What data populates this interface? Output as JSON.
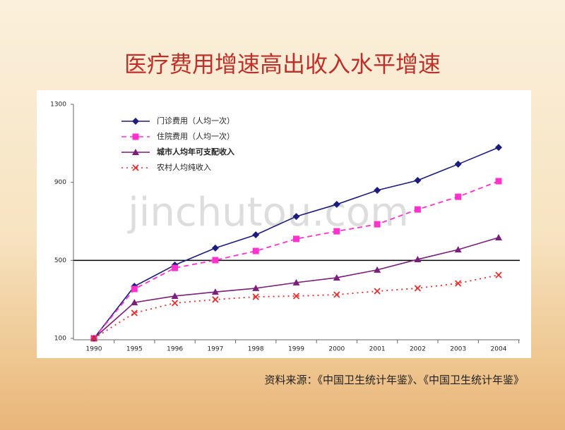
{
  "title": "医疗费用增速高出收入水平增速",
  "source": "资料来源：《中国卫生统计年鉴》、《中国卫生统计年鉴》",
  "watermark": "jinchutou.com",
  "chart_data": {
    "type": "line",
    "categories": [
      "1990",
      "1995",
      "1996",
      "1997",
      "1998",
      "1999",
      "2000",
      "2001",
      "2002",
      "2003",
      "2004"
    ],
    "ylim": [
      100,
      1300
    ],
    "yticks": [
      100,
      500,
      900,
      1300
    ],
    "reference_line": 500,
    "series": [
      {
        "name": "门诊费用（人均一次）",
        "color": "#1c1c7c",
        "line": "solid",
        "marker": "diamond",
        "values": [
          100,
          367,
          476,
          563,
          631,
          725,
          787,
          859,
          910,
          993,
          1079
        ]
      },
      {
        "name": "住院费用（人均一次）",
        "color": "#ff33cc",
        "line": "dashed",
        "marker": "square",
        "values": [
          100,
          353,
          461,
          501,
          548,
          610,
          649,
          685,
          761,
          826,
          906
        ]
      },
      {
        "name": "城市人均年可支配收入",
        "color": "#7a1f7a",
        "line": "solid",
        "marker": "triangle",
        "values": [
          100,
          284,
          317,
          338,
          357,
          386,
          411,
          451,
          505,
          555,
          617
        ]
      },
      {
        "name": "农村人均纯收入",
        "color": "#e03030",
        "line": "dotted",
        "marker": "x",
        "values": [
          100,
          230,
          281,
          299,
          313,
          317,
          324,
          342,
          357,
          382,
          425
        ]
      }
    ]
  }
}
